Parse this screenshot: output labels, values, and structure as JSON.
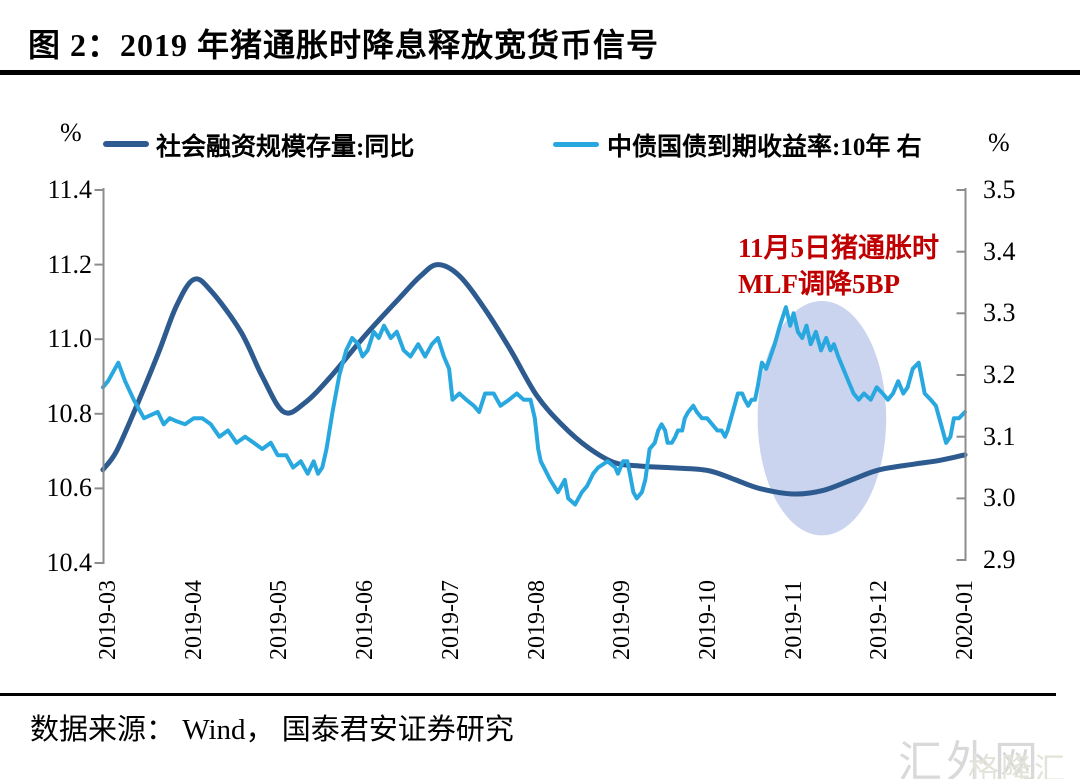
{
  "page": {
    "title": "图 2：2019 年猪通胀时降息释放宽货币信号",
    "source_text": "数据来源： Wind， 国泰君安证券研究",
    "watermark_primary": "汇外网",
    "watermark_secondary": "格隆汇"
  },
  "legend": {
    "left_unit": "%",
    "right_unit": "%",
    "series1_label": "社会融资规模存量:同比",
    "series2_label": "中债国债到期收益率:10年 右"
  },
  "annotation": {
    "line1": "11月5日猪通胀时",
    "line2": "MLF调降5BP",
    "color": "#c00000"
  },
  "colors": {
    "series1": "#2e5b8f",
    "series2": "#29a8e0",
    "axis": "#8c8c8c",
    "highlight_ellipse": "#c4cfec",
    "annotation_red": "#c00000"
  },
  "chart_data": {
    "type": "line",
    "title": "图 2：2019 年猪通胀时降息释放宽货币信号",
    "x_categories": [
      "2019-03",
      "2019-04",
      "2019-05",
      "2019-06",
      "2019-07",
      "2019-08",
      "2019-09",
      "2019-10",
      "2019-11",
      "2019-12",
      "2020-01"
    ],
    "x_note": "month_index 0 = 2019-03, 10 = 2020-01",
    "left_axis": {
      "unit": "%",
      "range": [
        10.4,
        11.4
      ],
      "ticks": [
        "11.4",
        "11.2",
        "11.0",
        "10.8",
        "10.6",
        "10.4"
      ]
    },
    "right_axis": {
      "unit": "%",
      "range": [
        2.9,
        3.5
      ],
      "ticks": [
        "3.5",
        "3.4",
        "3.3",
        "3.2",
        "3.1",
        "3.0",
        "2.9"
      ]
    },
    "grid": false,
    "legend_position": "top",
    "series": [
      {
        "name": "社会融资规模存量:同比",
        "axis": "left",
        "color": "#2e5b8f",
        "style": "smooth",
        "stroke_width": 5,
        "points": [
          [
            -0.06,
            10.65
          ],
          [
            0.1,
            10.7
          ],
          [
            0.35,
            10.83
          ],
          [
            0.6,
            10.97
          ],
          [
            0.8,
            11.09
          ],
          [
            1.0,
            11.16
          ],
          [
            1.2,
            11.13
          ],
          [
            1.55,
            11.02
          ],
          [
            1.8,
            10.9
          ],
          [
            2.05,
            10.805
          ],
          [
            2.3,
            10.83
          ],
          [
            2.6,
            10.9
          ],
          [
            3.0,
            11.01
          ],
          [
            3.4,
            11.11
          ],
          [
            3.65,
            11.17
          ],
          [
            3.85,
            11.2
          ],
          [
            4.1,
            11.17
          ],
          [
            4.4,
            11.08
          ],
          [
            4.7,
            10.97
          ],
          [
            5.0,
            10.85
          ],
          [
            5.3,
            10.77
          ],
          [
            5.6,
            10.71
          ],
          [
            5.9,
            10.67
          ],
          [
            6.2,
            10.66
          ],
          [
            6.6,
            10.655
          ],
          [
            7.0,
            10.648
          ],
          [
            7.3,
            10.625
          ],
          [
            7.6,
            10.6
          ],
          [
            8.0,
            10.585
          ],
          [
            8.35,
            10.595
          ],
          [
            8.7,
            10.625
          ],
          [
            9.0,
            10.65
          ],
          [
            9.4,
            10.665
          ],
          [
            9.7,
            10.675
          ],
          [
            10.0,
            10.69
          ]
        ]
      },
      {
        "name": "中债国债到期收益率:10年 右",
        "axis": "right",
        "color": "#29a8e0",
        "style": "jagged",
        "stroke_width": 4,
        "points": [
          [
            -0.06,
            3.18
          ],
          [
            0.0,
            3.19
          ],
          [
            0.12,
            3.22
          ],
          [
            0.2,
            3.19
          ],
          [
            0.3,
            3.16
          ],
          [
            0.42,
            3.13
          ],
          [
            0.5,
            3.135
          ],
          [
            0.58,
            3.14
          ],
          [
            0.65,
            3.12
          ],
          [
            0.72,
            3.13
          ],
          [
            0.8,
            3.125
          ],
          [
            0.9,
            3.12
          ],
          [
            1.0,
            3.13
          ],
          [
            1.1,
            3.13
          ],
          [
            1.2,
            3.12
          ],
          [
            1.3,
            3.1
          ],
          [
            1.4,
            3.11
          ],
          [
            1.5,
            3.09
          ],
          [
            1.6,
            3.1
          ],
          [
            1.7,
            3.09
          ],
          [
            1.8,
            3.08
          ],
          [
            1.9,
            3.09
          ],
          [
            1.98,
            3.07
          ],
          [
            2.08,
            3.07
          ],
          [
            2.16,
            3.05
          ],
          [
            2.25,
            3.06
          ],
          [
            2.33,
            3.04
          ],
          [
            2.4,
            3.06
          ],
          [
            2.45,
            3.04
          ],
          [
            2.5,
            3.05
          ],
          [
            2.55,
            3.08
          ],
          [
            2.62,
            3.14
          ],
          [
            2.7,
            3.2
          ],
          [
            2.78,
            3.24
          ],
          [
            2.85,
            3.26
          ],
          [
            2.92,
            3.25
          ],
          [
            2.97,
            3.23
          ],
          [
            3.03,
            3.24
          ],
          [
            3.1,
            3.27
          ],
          [
            3.16,
            3.26
          ],
          [
            3.22,
            3.28
          ],
          [
            3.3,
            3.26
          ],
          [
            3.37,
            3.27
          ],
          [
            3.45,
            3.24
          ],
          [
            3.53,
            3.23
          ],
          [
            3.62,
            3.25
          ],
          [
            3.7,
            3.23
          ],
          [
            3.78,
            3.25
          ],
          [
            3.85,
            3.26
          ],
          [
            3.92,
            3.23
          ],
          [
            3.98,
            3.21
          ],
          [
            4.02,
            3.16
          ],
          [
            4.1,
            3.17
          ],
          [
            4.18,
            3.16
          ],
          [
            4.27,
            3.15
          ],
          [
            4.33,
            3.14
          ],
          [
            4.4,
            3.17
          ],
          [
            4.5,
            3.17
          ],
          [
            4.58,
            3.15
          ],
          [
            4.68,
            3.16
          ],
          [
            4.77,
            3.17
          ],
          [
            4.85,
            3.16
          ],
          [
            4.93,
            3.16
          ],
          [
            4.98,
            3.13
          ],
          [
            5.02,
            3.08
          ],
          [
            5.05,
            3.06
          ],
          [
            5.16,
            3.03
          ],
          [
            5.25,
            3.01
          ],
          [
            5.33,
            3.03
          ],
          [
            5.37,
            3.0
          ],
          [
            5.45,
            2.99
          ],
          [
            5.53,
            3.01
          ],
          [
            5.59,
            3.02
          ],
          [
            5.66,
            3.04
          ],
          [
            5.72,
            3.05
          ],
          [
            5.83,
            3.06
          ],
          [
            5.92,
            3.05
          ],
          [
            5.95,
            3.04
          ],
          [
            6.01,
            3.06
          ],
          [
            6.06,
            3.06
          ],
          [
            6.09,
            3.04
          ],
          [
            6.13,
            3.01
          ],
          [
            6.17,
            3.0
          ],
          [
            6.23,
            3.01
          ],
          [
            6.27,
            3.03
          ],
          [
            6.32,
            3.08
          ],
          [
            6.38,
            3.09
          ],
          [
            6.42,
            3.11
          ],
          [
            6.46,
            3.12
          ],
          [
            6.5,
            3.11
          ],
          [
            6.53,
            3.09
          ],
          [
            6.58,
            3.09
          ],
          [
            6.62,
            3.1
          ],
          [
            6.65,
            3.11
          ],
          [
            6.7,
            3.11
          ],
          [
            6.73,
            3.13
          ],
          [
            6.77,
            3.14
          ],
          [
            6.83,
            3.15
          ],
          [
            6.87,
            3.14
          ],
          [
            6.93,
            3.13
          ],
          [
            6.99,
            3.13
          ],
          [
            7.05,
            3.12
          ],
          [
            7.11,
            3.11
          ],
          [
            7.16,
            3.11
          ],
          [
            7.2,
            3.1
          ],
          [
            7.23,
            3.11
          ],
          [
            7.29,
            3.14
          ],
          [
            7.35,
            3.17
          ],
          [
            7.4,
            3.17
          ],
          [
            7.43,
            3.16
          ],
          [
            7.47,
            3.15
          ],
          [
            7.51,
            3.16
          ],
          [
            7.55,
            3.16
          ],
          [
            7.58,
            3.18
          ],
          [
            7.63,
            3.22
          ],
          [
            7.68,
            3.21
          ],
          [
            7.73,
            3.23
          ],
          [
            7.78,
            3.25
          ],
          [
            7.84,
            3.28
          ],
          [
            7.91,
            3.31
          ],
          [
            7.96,
            3.28
          ],
          [
            8.0,
            3.3
          ],
          [
            8.05,
            3.27
          ],
          [
            8.1,
            3.26
          ],
          [
            8.15,
            3.28
          ],
          [
            8.2,
            3.25
          ],
          [
            8.26,
            3.27
          ],
          [
            8.32,
            3.24
          ],
          [
            8.38,
            3.26
          ],
          [
            8.43,
            3.24
          ],
          [
            8.47,
            3.25
          ],
          [
            8.52,
            3.23
          ],
          [
            8.58,
            3.21
          ],
          [
            8.64,
            3.19
          ],
          [
            8.7,
            3.17
          ],
          [
            8.76,
            3.16
          ],
          [
            8.82,
            3.17
          ],
          [
            8.9,
            3.16
          ],
          [
            8.97,
            3.18
          ],
          [
            9.04,
            3.17
          ],
          [
            9.1,
            3.16
          ],
          [
            9.16,
            3.17
          ],
          [
            9.22,
            3.19
          ],
          [
            9.28,
            3.17
          ],
          [
            9.33,
            3.18
          ],
          [
            9.39,
            3.21
          ],
          [
            9.46,
            3.22
          ],
          [
            9.53,
            3.17
          ],
          [
            9.6,
            3.16
          ],
          [
            9.66,
            3.15
          ],
          [
            9.72,
            3.12
          ],
          [
            9.78,
            3.09
          ],
          [
            9.83,
            3.1
          ],
          [
            9.87,
            3.13
          ],
          [
            9.93,
            3.13
          ],
          [
            10.0,
            3.14
          ]
        ]
      }
    ],
    "highlight": {
      "shape": "ellipse",
      "center_month": 8.33,
      "center_value_right_axis": 3.13,
      "radius_months": 0.75,
      "radius_value_right_axis": 0.19,
      "color": "#c4cfec"
    },
    "annotations": [
      {
        "text": "11月5日猪通胀时 MLF调降5BP",
        "color": "#c00000",
        "near_month": 8.0
      }
    ]
  }
}
